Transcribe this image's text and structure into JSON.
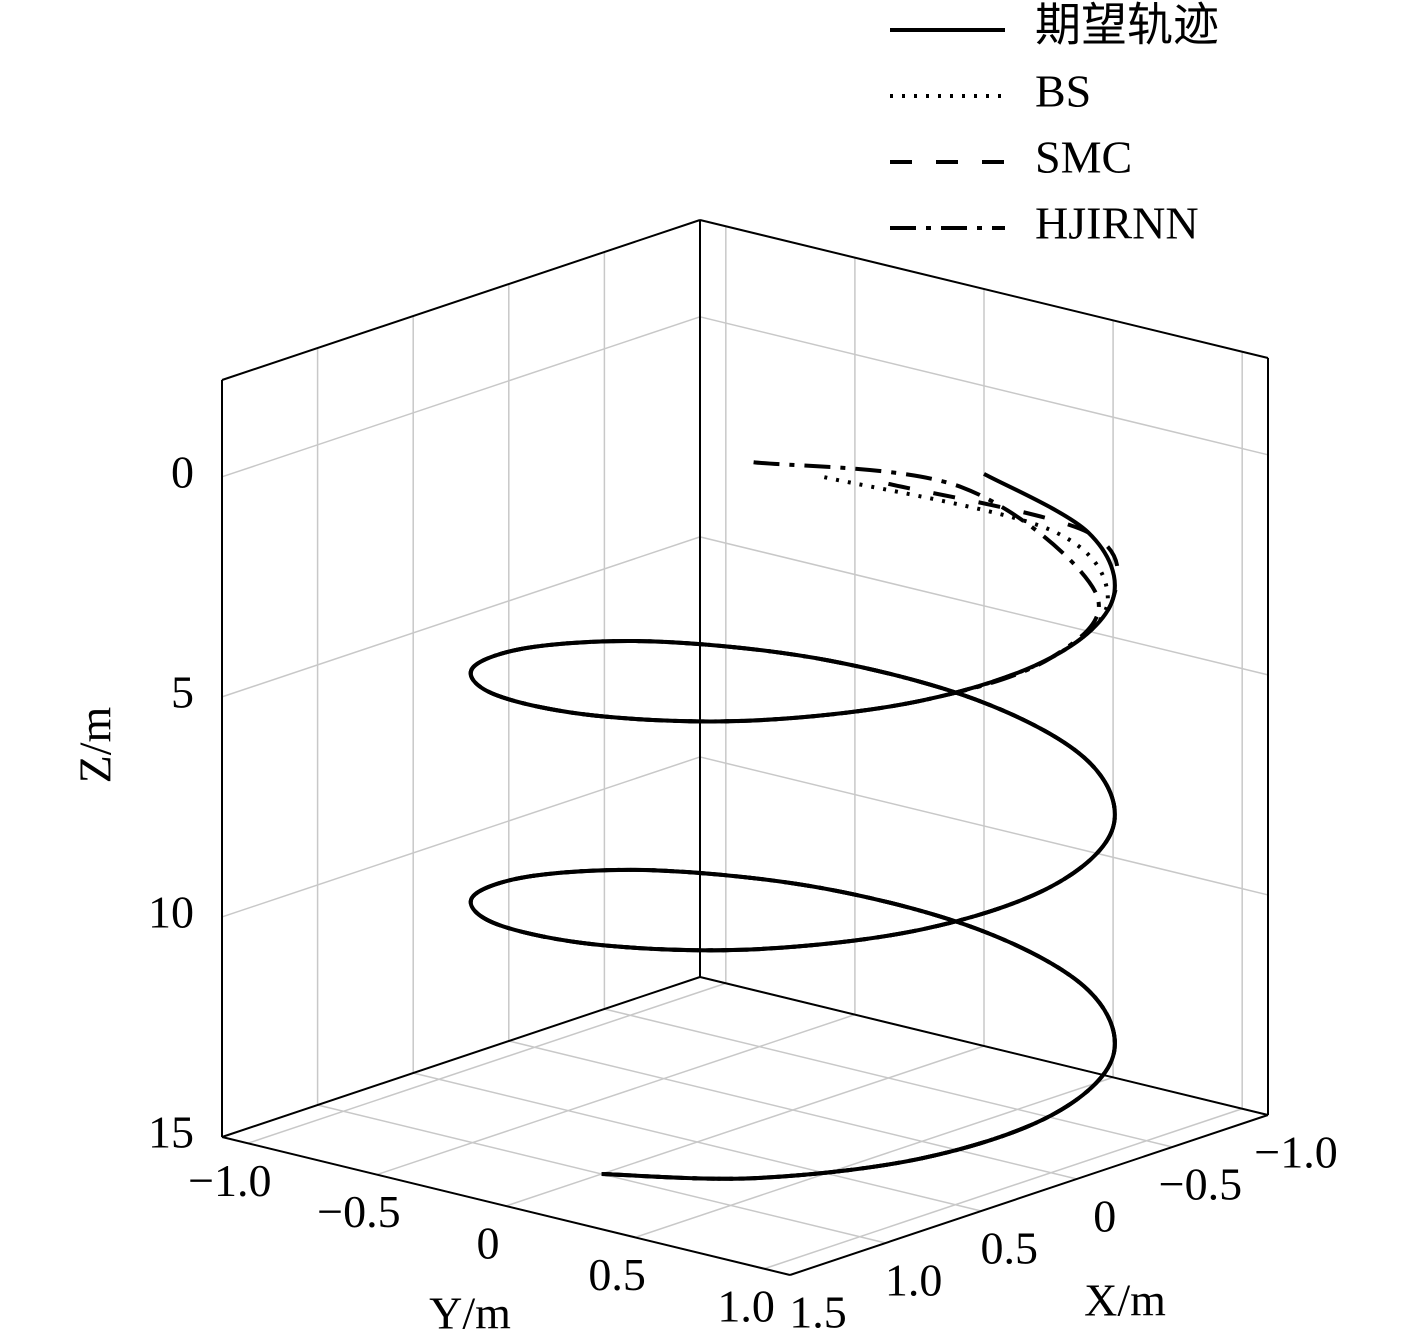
{
  "chart_data": {
    "type": "line3d",
    "xlabel": "X/m",
    "ylabel": "Y/m",
    "zlabel": "Z/m",
    "xlim": [
      -1.0,
      1.5
    ],
    "ylim": [
      -1.1,
      1.1
    ],
    "zlim": [
      -2.2,
      15
    ],
    "z_reversed": true,
    "grid": true,
    "legend": "top-right",
    "xticks": [
      {
        "value": -1.0,
        "label": "−1.0"
      },
      {
        "value": -0.5,
        "label": "−0.5"
      },
      0,
      0.5,
      {
        "value": 1.0,
        "label": "1.0"
      },
      1.5
    ],
    "yticks": [
      {
        "value": -1.0,
        "label": "−1.0"
      },
      {
        "value": -0.5,
        "label": "−0.5"
      },
      0,
      0.5,
      {
        "value": 1.0,
        "label": "1.0"
      }
    ],
    "zticks": [
      0,
      5,
      10,
      15
    ],
    "series": [
      {
        "name": "期望轨迹",
        "color": "#000000",
        "linestyle": "solid",
        "x": [
          -1,
          -0.87,
          -0.5,
          0,
          0.5,
          0.87,
          1,
          0.87,
          0.5,
          0,
          -0.5,
          -0.87,
          -1,
          -0.87,
          -0.5,
          0,
          0.5,
          0.87,
          1,
          0.87,
          0.5,
          0,
          -0.5,
          -0.87,
          -1,
          -0.87,
          -0.5,
          0,
          0.5,
          0.87,
          1
        ],
        "y": [
          0,
          0.5,
          0.87,
          1,
          0.87,
          0.5,
          0,
          -0.5,
          -0.87,
          -1,
          -0.87,
          -0.5,
          0,
          0.5,
          0.87,
          1,
          0.87,
          0.5,
          0,
          -0.5,
          -0.87,
          -1,
          -0.87,
          -0.5,
          0,
          0.5,
          0.87,
          1,
          0.87,
          0.5,
          0
        ],
        "z": [
          2,
          2.43,
          2.87,
          3.3,
          3.73,
          4.17,
          4.6,
          5.03,
          5.47,
          5.9,
          6.33,
          6.77,
          7.2,
          7.63,
          8.07,
          8.5,
          8.93,
          9.37,
          9.8,
          10.23,
          10.67,
          11.1,
          11.53,
          11.97,
          12.4,
          12.83,
          13.27,
          13.7,
          14.13,
          14.57,
          15
        ]
      },
      {
        "name": "BS",
        "color": "#000000",
        "linestyle": "dotted",
        "x": [
          -0.3,
          -0.8,
          -0.5,
          0,
          0.5,
          0.87,
          1,
          0.87,
          0.5,
          0,
          -0.5,
          -0.87,
          -1,
          -0.87,
          -0.5,
          0,
          0.5,
          0.87,
          1,
          0.87,
          0.5,
          0,
          -0.5,
          -0.87,
          -1,
          -0.87,
          -0.5,
          0,
          0.5,
          0.87,
          1
        ],
        "y": [
          -0.1,
          0.4,
          0.85,
          1,
          0.87,
          0.5,
          0,
          -0.5,
          -0.87,
          -1,
          -0.87,
          -0.5,
          0,
          0.5,
          0.87,
          1,
          0.87,
          0.5,
          0,
          -0.5,
          -0.87,
          -1,
          -0.87,
          -0.5,
          0,
          0.5,
          0.87,
          1,
          0.87,
          0.5,
          0
        ],
        "z": [
          1.2,
          2.4,
          2.9,
          3.3,
          3.73,
          4.17,
          4.6,
          5.03,
          5.47,
          5.9,
          6.33,
          6.77,
          7.2,
          7.63,
          8.07,
          8.5,
          8.93,
          9.37,
          9.8,
          10.23,
          10.67,
          11.1,
          11.53,
          11.97,
          12.4,
          12.83,
          13.27,
          13.7,
          14.13,
          14.57,
          15
        ]
      },
      {
        "name": "SMC",
        "color": "#000000",
        "linestyle": "dashed",
        "x": [
          -0.5,
          -0.87,
          -0.5,
          0,
          0.5,
          0.87,
          1,
          0.87,
          0.5,
          0,
          -0.5,
          -0.87,
          -1,
          -0.87,
          -0.5,
          0,
          0.5,
          0.87,
          1,
          0.87,
          0.5,
          0,
          -0.5,
          -0.87,
          -1,
          -0.87,
          -0.5,
          0,
          0.5,
          0.87,
          1
        ],
        "y": [
          0,
          0.5,
          0.87,
          1,
          0.87,
          0.5,
          0,
          -0.5,
          -0.87,
          -1,
          -0.87,
          -0.5,
          0,
          0.5,
          0.87,
          1,
          0.87,
          0.5,
          0,
          -0.5,
          -0.87,
          -1,
          -0.87,
          -0.5,
          0,
          0.5,
          0.87,
          1,
          0.87,
          0.5,
          0
        ],
        "z": [
          1.5,
          2.43,
          2.87,
          3.3,
          3.73,
          4.17,
          4.6,
          5.03,
          5.47,
          5.9,
          6.33,
          6.77,
          7.2,
          7.63,
          8.07,
          8.5,
          8.93,
          9.37,
          9.8,
          10.23,
          10.67,
          11.1,
          11.53,
          11.97,
          12.4,
          12.83,
          13.27,
          13.7,
          14.13,
          14.57,
          15
        ]
      },
      {
        "name": "HJIRNN",
        "color": "#000000",
        "linestyle": "dashdot",
        "x": [
          -0.2,
          -0.75,
          -0.5,
          0,
          0.5,
          0.87,
          1,
          0.87,
          0.5,
          0,
          -0.5,
          -0.87,
          -1,
          -0.87,
          -0.5,
          0,
          0.5,
          0.87,
          1,
          0.87,
          0.5,
          0,
          -0.5,
          -0.87,
          -1,
          -0.87,
          -0.5,
          0,
          0.5,
          0.87,
          1
        ],
        "y": [
          -0.3,
          0.1,
          0.8,
          1,
          0.87,
          0.5,
          0,
          -0.5,
          -0.87,
          -1,
          -0.87,
          -0.5,
          0,
          0.5,
          0.87,
          1,
          0.87,
          0.5,
          0,
          -0.5,
          -0.87,
          -1,
          -0.87,
          -0.5,
          0,
          0.5,
          0.87,
          1,
          0.87,
          0.5,
          0
        ],
        "z": [
          1.0,
          1.8,
          2.8,
          3.3,
          3.73,
          4.17,
          4.6,
          5.03,
          5.47,
          5.9,
          6.33,
          6.77,
          7.2,
          7.63,
          8.07,
          8.5,
          8.93,
          9.37,
          9.8,
          10.23,
          10.67,
          11.1,
          11.53,
          11.97,
          12.4,
          12.83,
          13.27,
          13.7,
          14.13,
          14.57,
          15
        ]
      }
    ]
  }
}
